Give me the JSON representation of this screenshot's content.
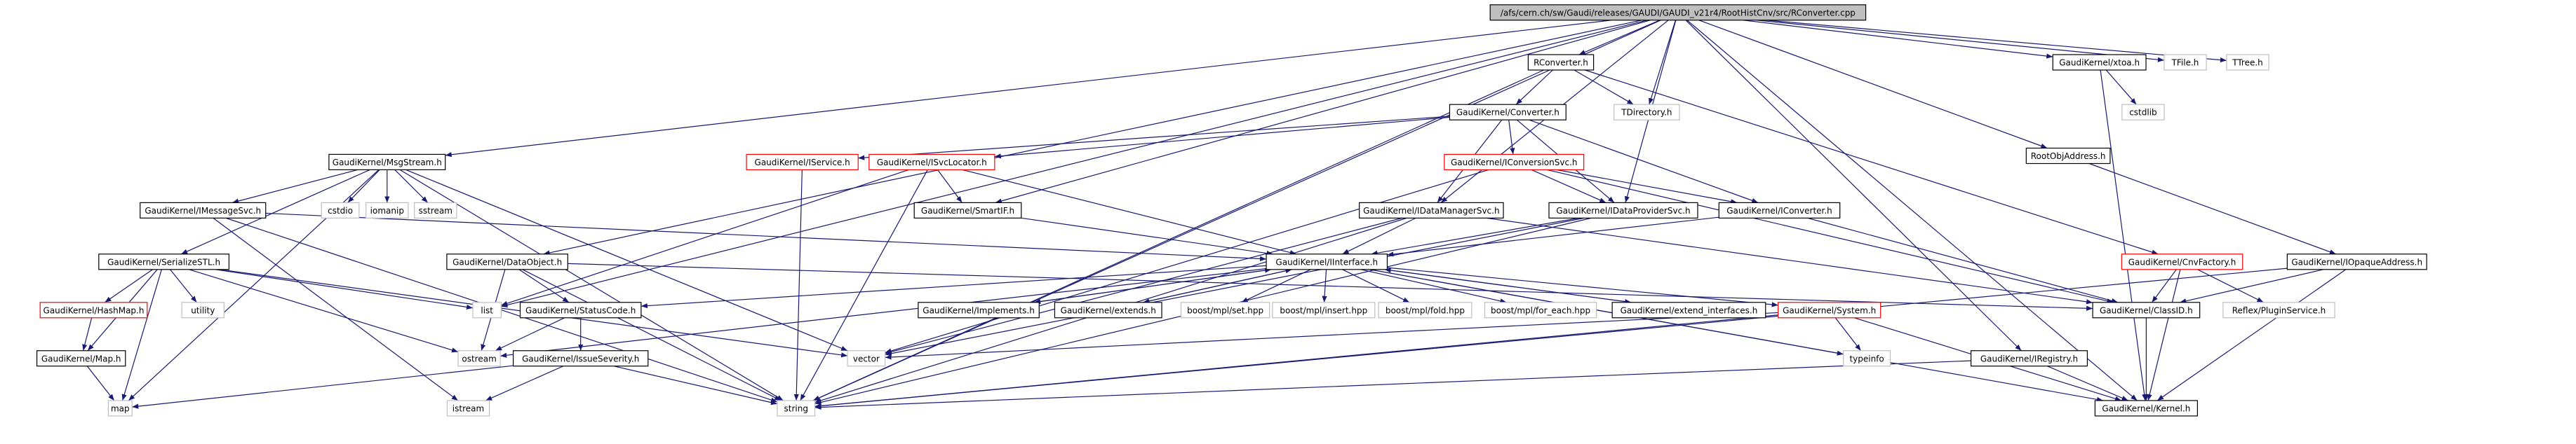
{
  "nodes": [
    {
      "label": "/afs/cern.ch/sw/Gaudi/releases/GAUDI/GAUDI_v21r4/RootHistCnv/src/RConverter.cpp"
    },
    {
      "label": "RConverter.h"
    },
    {
      "label": "GaudiKernel/xtoa.h"
    },
    {
      "label": "TFile.h"
    },
    {
      "label": "TTree.h"
    },
    {
      "label": "TDirectory.h"
    },
    {
      "label": "GaudiKernel/Converter.h"
    },
    {
      "label": "cstdlib"
    },
    {
      "label": "RootObjAddress.h"
    },
    {
      "label": "GaudiKernel/MsgStream.h"
    },
    {
      "label": "GaudiKernel/IService.h"
    },
    {
      "label": "GaudiKernel/ISvcLocator.h"
    },
    {
      "label": "GaudiKernel/IConversionSvc.h"
    },
    {
      "label": "cstdio"
    },
    {
      "label": "iomanip"
    },
    {
      "label": "sstream"
    },
    {
      "label": "GaudiKernel/IMessageSvc.h"
    },
    {
      "label": "GaudiKernel/SmartIF.h"
    },
    {
      "label": "GaudiKernel/IDataManagerSvc.h"
    },
    {
      "label": "GaudiKernel/IDataProviderSvc.h"
    },
    {
      "label": "GaudiKernel/IConverter.h"
    },
    {
      "label": "GaudiKernel/SerializeSTL.h"
    },
    {
      "label": "GaudiKernel/DataObject.h"
    },
    {
      "label": "GaudiKernel/IInterface.h"
    },
    {
      "label": "GaudiKernel/CnvFactory.h"
    },
    {
      "label": "GaudiKernel/IOpaqueAddress.h"
    },
    {
      "label": "GaudiKernel/HashMap.h"
    },
    {
      "label": "utility"
    },
    {
      "label": "list"
    },
    {
      "label": "GaudiKernel/StatusCode.h"
    },
    {
      "label": "GaudiKernel/Implements.h"
    },
    {
      "label": "GaudiKernel/extends.h"
    },
    {
      "label": "boost/mpl/set.hpp"
    },
    {
      "label": "boost/mpl/insert.hpp"
    },
    {
      "label": "boost/mpl/fold.hpp"
    },
    {
      "label": "boost/mpl/for_each.hpp"
    },
    {
      "label": "GaudiKernel/extend_interfaces.h"
    },
    {
      "label": "GaudiKernel/System.h"
    },
    {
      "label": "GaudiKernel/ClassID.h"
    },
    {
      "label": "Reflex/PluginService.h"
    },
    {
      "label": "GaudiKernel/Map.h"
    },
    {
      "label": "ostream"
    },
    {
      "label": "vector"
    },
    {
      "label": "GaudiKernel/IssueSeverity.h"
    },
    {
      "label": "typeinfo"
    },
    {
      "label": "GaudiKernel/IRegistry.h"
    },
    {
      "label": "map"
    },
    {
      "label": "istream"
    },
    {
      "label": "string"
    },
    {
      "label": "GaudiKernel/Kernel.h"
    }
  ]
}
